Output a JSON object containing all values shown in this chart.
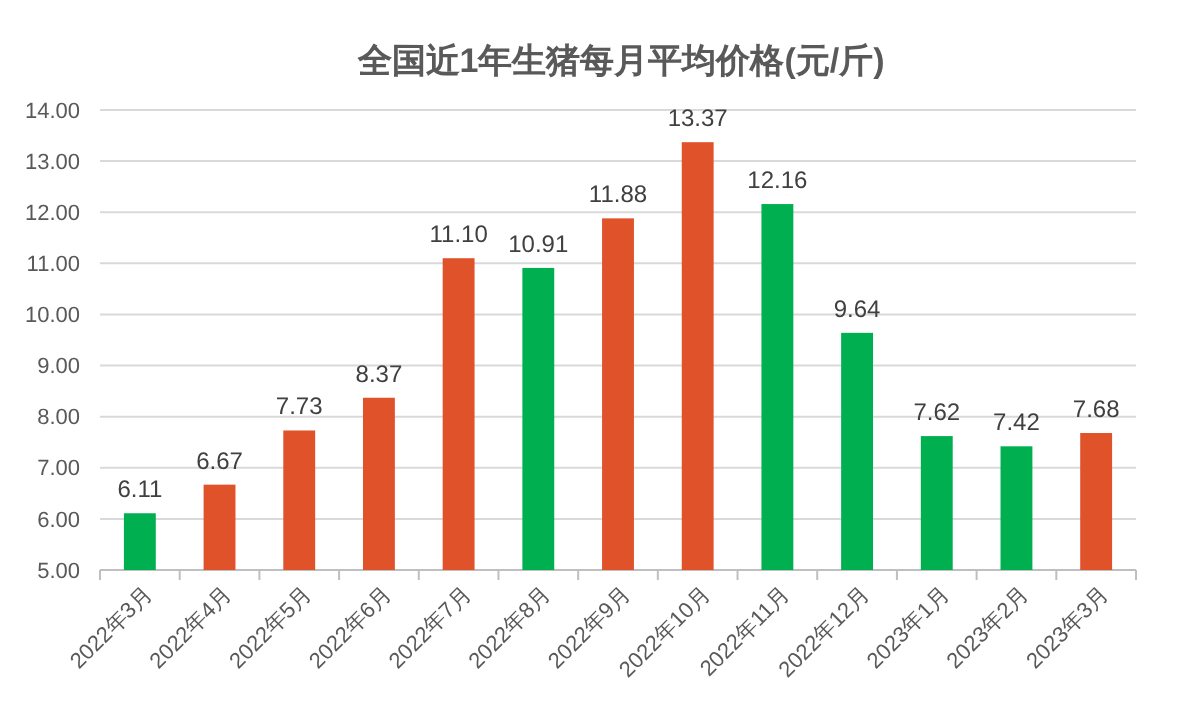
{
  "chart_data": {
    "type": "bar",
    "title": "全国近1年生猪每月平均价格(元/斤)",
    "categories": [
      "2022年3月",
      "2022年4月",
      "2022年5月",
      "2022年6月",
      "2022年7月",
      "2022年8月",
      "2022年9月",
      "2022年10月",
      "2022年11月",
      "2022年12月",
      "2023年1月",
      "2023年2月",
      "2023年3月"
    ],
    "values": [
      6.11,
      6.67,
      7.73,
      8.37,
      11.1,
      10.91,
      11.88,
      13.37,
      12.16,
      9.64,
      7.62,
      7.42,
      7.68
    ],
    "value_labels": [
      "6.11",
      "6.67",
      "7.73",
      "8.37",
      "11.10",
      "10.91",
      "11.88",
      "13.37",
      "12.16",
      "9.64",
      "7.62",
      "7.42",
      "7.68"
    ],
    "colors": [
      "#00b050",
      "#e0522a",
      "#e0522a",
      "#e0522a",
      "#e0522a",
      "#00b050",
      "#e0522a",
      "#e0522a",
      "#00b050",
      "#00b050",
      "#00b050",
      "#00b050",
      "#e0522a"
    ],
    "ylim": [
      5,
      14
    ],
    "yticks": [
      {
        "value": 5,
        "label": "5.00"
      },
      {
        "value": 6,
        "label": "6.00"
      },
      {
        "value": 7,
        "label": "7.00"
      },
      {
        "value": 8,
        "label": "8.00"
      },
      {
        "value": 9,
        "label": "9.00"
      },
      {
        "value": 10,
        "label": "10.00"
      },
      {
        "value": 11,
        "label": "11.00"
      },
      {
        "value": 12,
        "label": "12.00"
      },
      {
        "value": 13,
        "label": "13.00"
      },
      {
        "value": 14,
        "label": "14.00"
      }
    ],
    "grid": "y"
  }
}
